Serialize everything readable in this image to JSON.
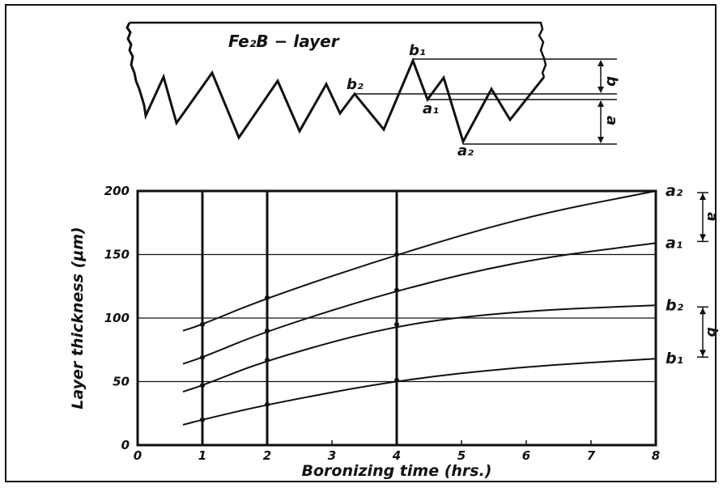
{
  "schematic": {
    "title": "Fe₂B − layer",
    "labels": [
      "b₁",
      "b₂",
      "a₁",
      "a₂"
    ],
    "dim_a": "a",
    "dim_b": "b"
  },
  "chart_data": {
    "type": "line",
    "xlabel": "Boronizing time (hrs.)",
    "ylabel": "Layer thickness (μm)",
    "xlim": [
      0,
      8
    ],
    "ylim": [
      0,
      200
    ],
    "xticks": [
      "0",
      "1",
      "2",
      "3",
      "4",
      "5",
      "6",
      "7",
      "8"
    ],
    "yticks": [
      "0",
      "50",
      "100",
      "150",
      "200"
    ],
    "grid": true,
    "series": [
      {
        "name": "a₂",
        "x": [
          0.7,
          1,
          2,
          4,
          6,
          8
        ],
        "y": [
          90,
          95,
          116,
          150,
          180,
          200
        ]
      },
      {
        "name": "a₁",
        "x": [
          0.7,
          1,
          2,
          4,
          6,
          8
        ],
        "y": [
          64,
          69,
          90,
          122,
          146,
          159
        ]
      },
      {
        "name": "b₂",
        "x": [
          0.7,
          1,
          2,
          4,
          6,
          8
        ],
        "y": [
          42,
          47,
          67,
          95,
          106,
          110
        ]
      },
      {
        "name": "b₁",
        "x": [
          0.7,
          1,
          2,
          4,
          6,
          8
        ],
        "y": [
          16,
          20,
          32,
          51,
          62,
          68
        ]
      }
    ],
    "right_dims": {
      "a": "a",
      "b": "b"
    }
  }
}
